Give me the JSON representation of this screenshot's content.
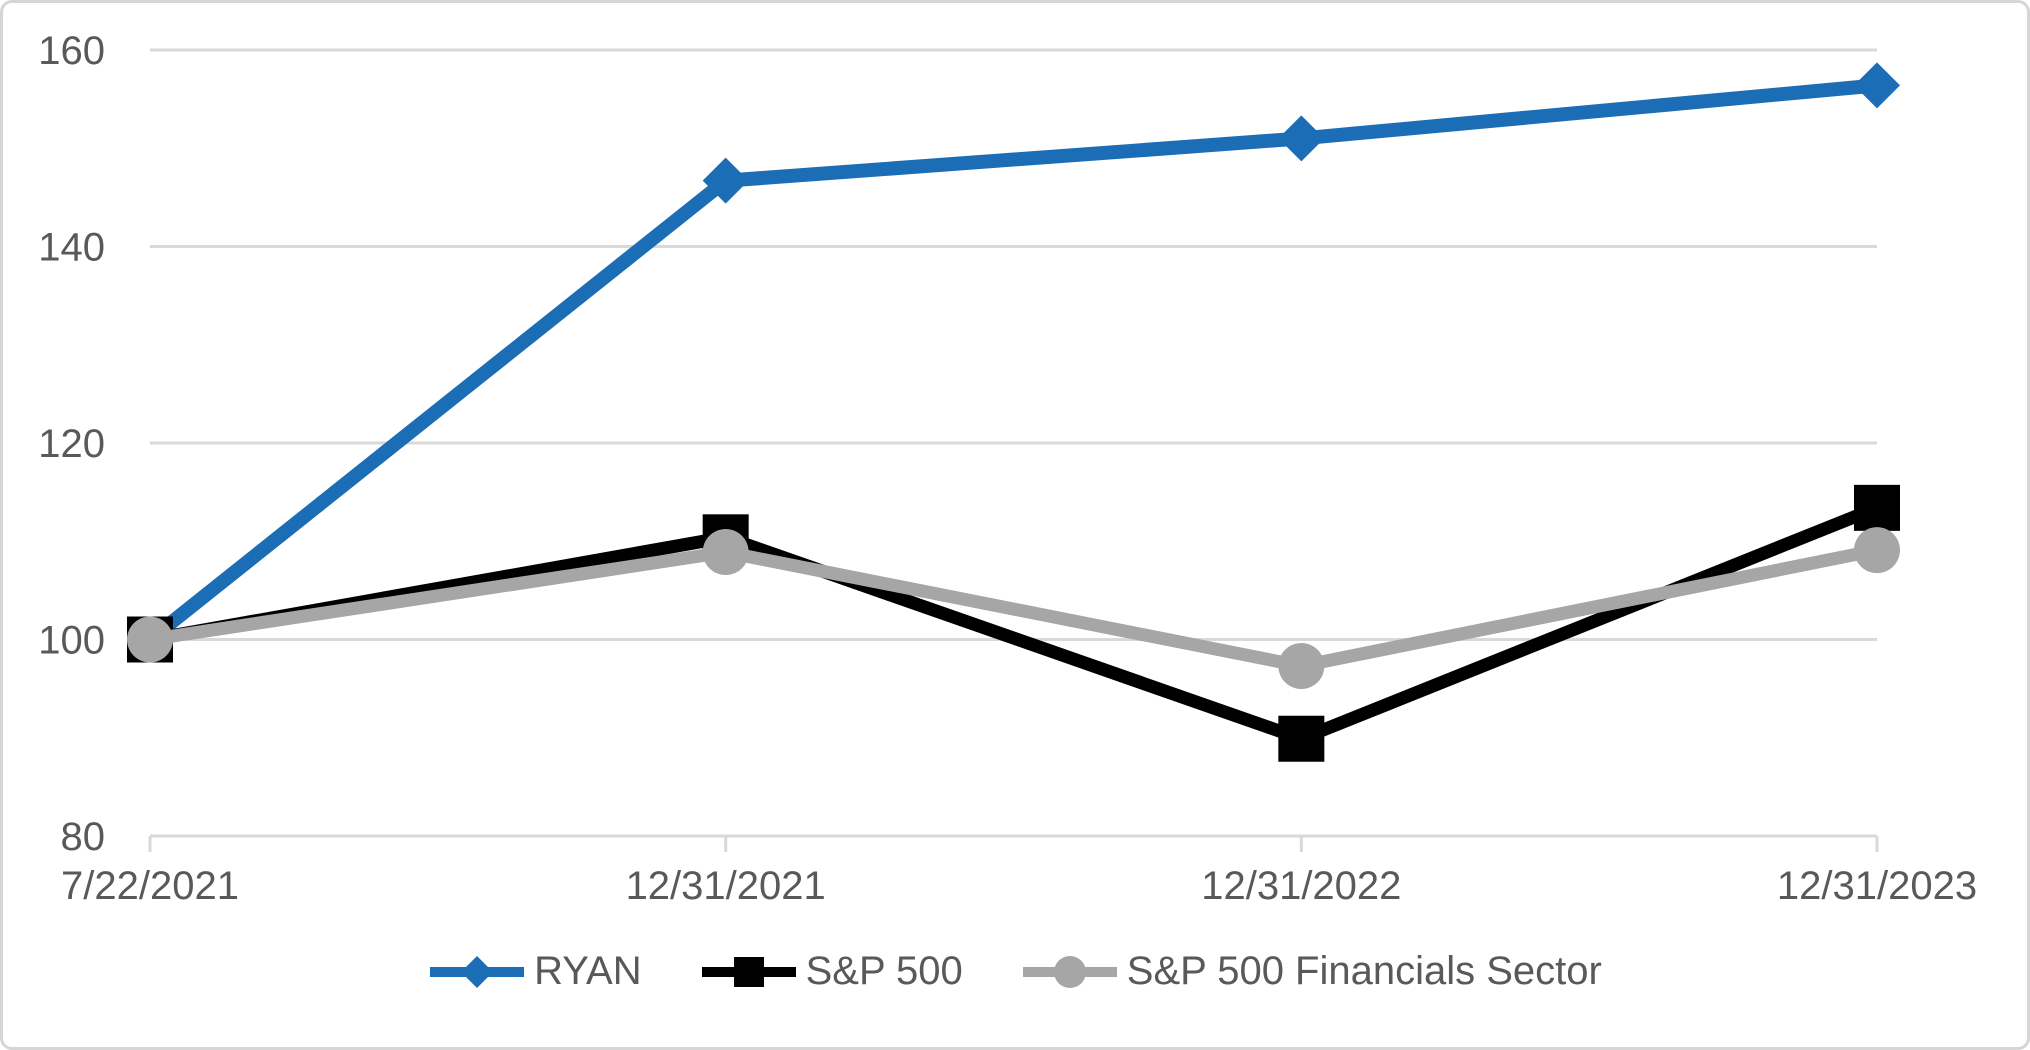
{
  "chart_data": {
    "type": "line",
    "title": "",
    "xlabel": "",
    "ylabel": "",
    "categories": [
      "7/22/2021",
      "12/31/2021",
      "12/31/2022",
      "12/31/2023"
    ],
    "series": [
      {
        "name": "RYAN",
        "color": "#1b6db5",
        "marker": "diamond",
        "line_width": 14,
        "values": [
          100,
          146.7,
          151.0,
          156.4
        ]
      },
      {
        "name": "S&P 500",
        "color": "#000000",
        "marker": "square",
        "line_width": 13,
        "values": [
          100,
          110.4,
          89.9,
          113.4
        ]
      },
      {
        "name": "S&P 500 Financials Sector",
        "color": "#a6a6a6",
        "marker": "circle",
        "line_width": 13,
        "values": [
          100,
          108.9,
          97.3,
          109.1
        ]
      }
    ],
    "ylim": [
      80,
      160
    ],
    "yticks": [
      80,
      100,
      120,
      140,
      160
    ],
    "grid": true,
    "legend_position": "bottom"
  },
  "colors": {
    "text": "#595959",
    "gridline": "#d9d9d9",
    "border": "#d6d6d6",
    "background": "#ffffff"
  }
}
